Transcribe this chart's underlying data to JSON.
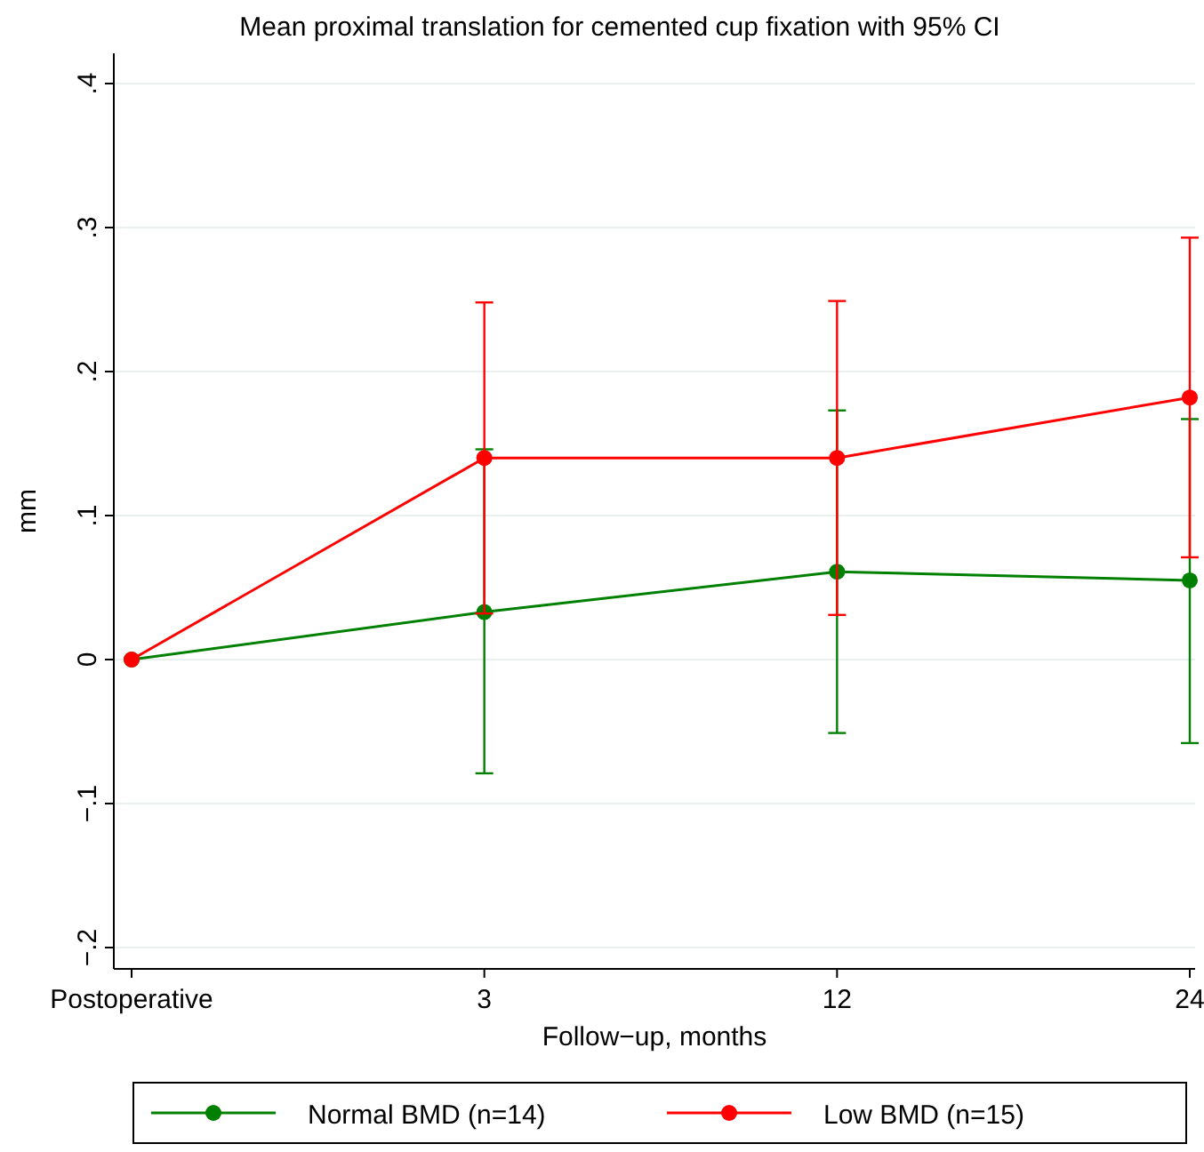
{
  "chart_data": {
    "type": "line",
    "title": "Mean proximal translation for cemented cup fixation with 95% CI",
    "xlabel": "Follow−up, months",
    "ylabel": "mm",
    "categories": [
      "Postoperative",
      "3",
      "12",
      "24"
    ],
    "series": [
      {
        "name": "Normal BMD (n=14)",
        "color": "#008000",
        "values": [
          0,
          0.033,
          0.061,
          0.055
        ],
        "errors": [
          null,
          [
            -0.079,
            0.146
          ],
          [
            -0.051,
            0.173
          ],
          [
            -0.058,
            0.167
          ]
        ]
      },
      {
        "name": "Low BMD (n=15)",
        "color": "#ff0000",
        "values": [
          0,
          0.14,
          0.14,
          0.182
        ],
        "errors": [
          null,
          [
            0.032,
            0.248
          ],
          [
            0.031,
            0.249
          ],
          [
            0.071,
            0.293
          ]
        ]
      }
    ],
    "ylim": [
      -0.2,
      0.4
    ],
    "yticks": [
      {
        "value": -0.2,
        "label": "−.2"
      },
      {
        "value": -0.1,
        "label": "−.1"
      },
      0,
      {
        "value": 0.1,
        "label": ".1"
      },
      {
        "value": 0.2,
        "label": ".2"
      },
      {
        "value": 0.3,
        "label": ".3"
      },
      {
        "value": 0.4,
        "label": ".4"
      }
    ],
    "grid": "y",
    "legend": "bottom",
    "marker": "circle",
    "line_style": "solid"
  }
}
